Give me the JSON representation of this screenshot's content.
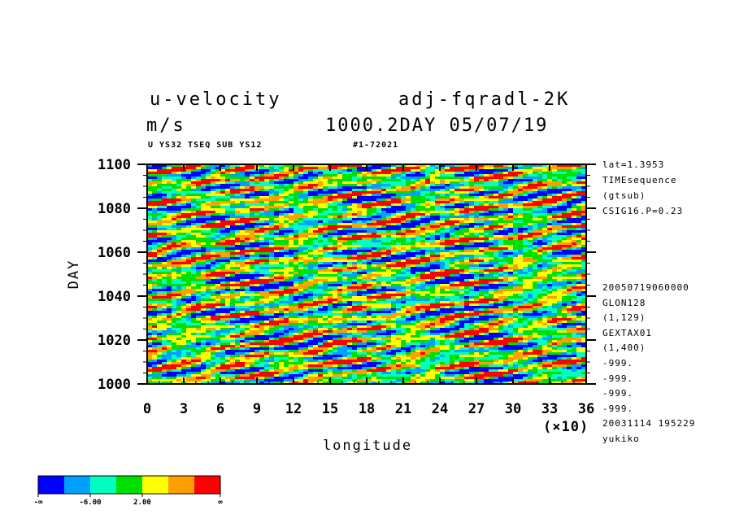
{
  "header": {
    "title_left": "u-velocity",
    "title_right": "adj-fqradl-2K",
    "units": "m/s",
    "time_stamp": "1000.2DAY 05/07/19",
    "sub_left": "U YS32 TSEQ SUB YS12",
    "sub_right": "#1-72021"
  },
  "side_info": {
    "top": [
      "lat=1.3953",
      "TIMEsequence",
      "(gtsub)",
      "CSIG16.P=0.23"
    ],
    "bottom": [
      "20050719060000",
      "GLON128",
      "(1,129)",
      "GEXTAX01",
      "(1,400)",
      "-999.",
      "-999.",
      "-999.",
      "-999.",
      "20031114 195229",
      "yukiko"
    ]
  },
  "chart_data": {
    "type": "heatmap",
    "title": "u-velocity",
    "xlabel": "longitude",
    "ylabel": "DAY",
    "x_multiplier": "(×10)",
    "xlim": [
      0,
      36
    ],
    "ylim": [
      1000,
      1100
    ],
    "x_ticks": [
      "0",
      "3",
      "6",
      "9",
      "12",
      "15",
      "18",
      "21",
      "24",
      "27",
      "30",
      "33",
      "36"
    ],
    "y_ticks": [
      "1000",
      "1020",
      "1040",
      "1060",
      "1080",
      "1100"
    ],
    "colorbar": {
      "colors": [
        "#0000ff",
        "#00a0ff",
        "#00ffc0",
        "#00e000",
        "#ffff00",
        "#ffa000",
        "#ff0000"
      ],
      "labels": [
        "-∞",
        "-6.00",
        "2.00",
        "∞"
      ]
    }
  }
}
